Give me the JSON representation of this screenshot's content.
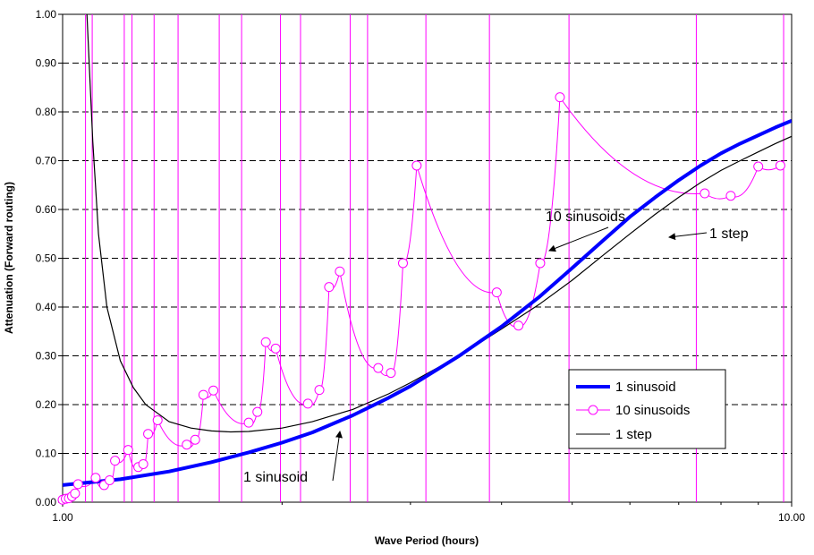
{
  "chart_data": {
    "type": "line",
    "xlabel": "Wave Period (hours)",
    "ylabel": "Attenuation (Forward routing)",
    "xscale": "log",
    "xlim": [
      1.0,
      10.0
    ],
    "ylim": [
      0.0,
      1.0
    ],
    "x_ticks": [
      "1.00",
      "10.00"
    ],
    "y_ticks": [
      "0.00",
      "0.10",
      "0.20",
      "0.30",
      "0.40",
      "0.50",
      "0.60",
      "0.70",
      "0.80",
      "0.90",
      "1.00"
    ],
    "grid": "horizontal-dashed",
    "legend_position": "bottom-right",
    "series": [
      {
        "name": "1 sinusoid",
        "color": "#0000ff",
        "style": "thick-line",
        "x": [
          1.0,
          1.2,
          1.4,
          1.6,
          1.8,
          2.0,
          2.2,
          2.5,
          2.8,
          3.0,
          3.5,
          4.0,
          4.5,
          5.0,
          5.5,
          6.0,
          6.5,
          7.0,
          7.5,
          8.0,
          8.5,
          9.0,
          9.5,
          10.0
        ],
        "y": [
          0.035,
          0.047,
          0.063,
          0.082,
          0.102,
          0.122,
          0.143,
          0.178,
          0.214,
          0.238,
          0.3,
          0.36,
          0.42,
          0.48,
          0.535,
          0.585,
          0.625,
          0.66,
          0.69,
          0.715,
          0.735,
          0.752,
          0.768,
          0.782
        ]
      },
      {
        "name": "10 sinusoids",
        "color": "#ff00ff",
        "style": "line-with-circles",
        "x": [
          1.0,
          1.01,
          1.02,
          1.03,
          1.04,
          1.05,
          1.11,
          1.14,
          1.16,
          1.18,
          1.23,
          1.27,
          1.29,
          1.31,
          1.35,
          1.48,
          1.52,
          1.56,
          1.61,
          1.8,
          1.85,
          1.9,
          1.96,
          2.17,
          2.25,
          2.32,
          2.4,
          2.71,
          2.82,
          2.93,
          3.06,
          3.94,
          4.22,
          4.52,
          4.81,
          7.6,
          8.25,
          9.0,
          9.65
        ],
        "y": [
          0.005,
          0.007,
          0.008,
          0.012,
          0.018,
          0.037,
          0.05,
          0.035,
          0.045,
          0.085,
          0.107,
          0.072,
          0.078,
          0.14,
          0.168,
          0.118,
          0.128,
          0.22,
          0.229,
          0.163,
          0.185,
          0.328,
          0.315,
          0.202,
          0.23,
          0.441,
          0.473,
          0.275,
          0.265,
          0.49,
          0.69,
          0.43,
          0.362,
          0.49,
          0.83,
          0.633,
          0.628,
          0.688,
          0.69
        ]
      },
      {
        "name": "1 step",
        "color": "#000000",
        "style": "thin-line",
        "x": [
          1.08,
          1.1,
          1.12,
          1.15,
          1.2,
          1.25,
          1.3,
          1.4,
          1.5,
          1.6,
          1.7,
          1.8,
          2.0,
          2.2,
          2.5,
          2.8,
          3.0,
          3.5,
          4.0,
          4.5,
          5.0,
          5.5,
          6.0,
          6.5,
          7.0,
          7.5,
          8.0,
          8.5,
          9.0,
          9.5,
          10.0
        ],
        "y": [
          1.0,
          0.74,
          0.55,
          0.4,
          0.29,
          0.235,
          0.2,
          0.165,
          0.152,
          0.146,
          0.144,
          0.145,
          0.152,
          0.165,
          0.19,
          0.222,
          0.245,
          0.3,
          0.355,
          0.405,
          0.455,
          0.505,
          0.55,
          0.59,
          0.625,
          0.655,
          0.68,
          0.7,
          0.718,
          0.735,
          0.75
        ]
      }
    ],
    "annotations": [
      {
        "text": "10 sinusoids"
      },
      {
        "text": "1 step"
      },
      {
        "text": "1 sinusoid"
      }
    ]
  }
}
